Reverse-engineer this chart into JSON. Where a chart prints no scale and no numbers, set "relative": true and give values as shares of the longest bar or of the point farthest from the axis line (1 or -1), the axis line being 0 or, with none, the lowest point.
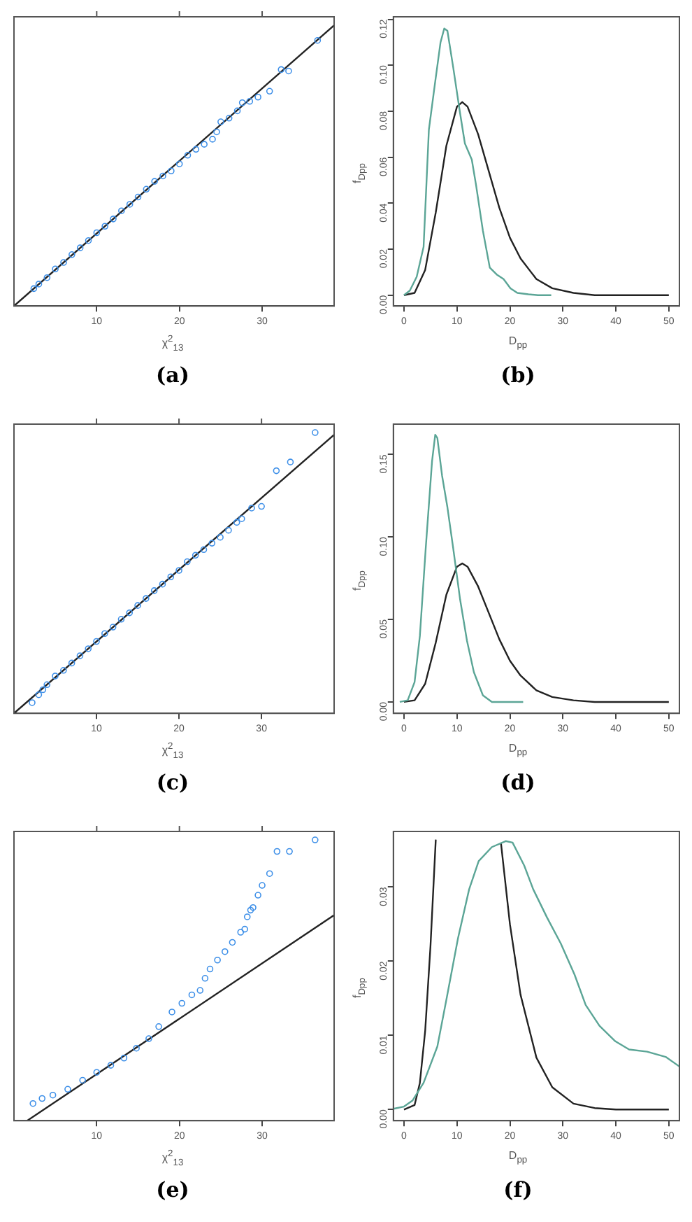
{
  "chart_data": [
    {
      "type": "scatter",
      "title": "(a)",
      "xlabel": "χ$^{2}$$_{13}$",
      "xlim": [
        0,
        38.7
      ],
      "xticks": [
        10,
        20,
        30
      ],
      "relative": true,
      "series": [
        {
          "type": "scatter",
          "marker": "circle",
          "color": "#3d8fe8",
          "x": [
            2.4,
            3,
            4,
            5,
            6,
            7,
            8,
            9,
            10,
            11,
            12,
            13,
            14,
            15,
            16,
            17,
            18,
            19,
            20,
            21,
            22,
            23,
            24,
            24.5,
            25,
            26,
            27,
            27.6,
            28.5,
            29.5,
            30.9,
            32.3,
            33.2,
            36.7
          ],
          "values": [
            0.062,
            0.078,
            0.101,
            0.132,
            0.155,
            0.183,
            0.207,
            0.233,
            0.261,
            0.284,
            0.31,
            0.339,
            0.362,
            0.388,
            0.416,
            0.444,
            0.463,
            0.481,
            0.506,
            0.537,
            0.558,
            0.576,
            0.594,
            0.62,
            0.656,
            0.669,
            0.695,
            0.724,
            0.729,
            0.744,
            0.765,
            0.842,
            0.837,
            0.946
          ]
        },
        {
          "type": "line",
          "marker": "none",
          "color": "#222222",
          "x": [
            0,
            38.7
          ],
          "values": [
            0,
            1
          ]
        }
      ]
    },
    {
      "type": "line",
      "title": "(b)",
      "xlabel": "D$_{pp}$",
      "ylabel": "f$_{Dpp}$",
      "xlim": [
        -2,
        52
      ],
      "ylim": [
        -0.0047,
        0.1211
      ],
      "xticks": [
        0,
        10,
        20,
        30,
        40,
        50
      ],
      "yticks": [
        {
          "value": 0,
          "label": "0.00"
        },
        {
          "value": 0.02,
          "label": "0.02"
        },
        {
          "value": 0.04,
          "label": "0.04"
        },
        {
          "value": 0.06,
          "label": "0.06"
        },
        {
          "value": 0.08,
          "label": "0.08"
        },
        {
          "value": 0.1,
          "label": "0.10"
        },
        {
          "value": 0.12,
          "label": "0.12"
        }
      ],
      "series": [
        {
          "color": "#5ba596",
          "x": [
            0,
            1.1,
            2.4,
            3.7,
            4.7,
            5.9,
            6.9,
            7.6,
            8.2,
            9.3,
            10.6,
            11.5,
            12.8,
            13.6,
            14.9,
            16.2,
            17.5,
            18.8,
            20.1,
            21.4,
            23.5,
            25.3,
            27.8
          ],
          "values": [
            0,
            0.002,
            0.008,
            0.021,
            0.072,
            0.093,
            0.11,
            0.116,
            0.115,
            0.099,
            0.079,
            0.066,
            0.059,
            0.048,
            0.028,
            0.012,
            0.009,
            0.007,
            0.003,
            0.001,
            0.0004,
            0,
            0
          ]
        },
        {
          "color": "#222222",
          "x": [
            0,
            2,
            4,
            6,
            8,
            10,
            11,
            12,
            14,
            16,
            18,
            20,
            22,
            25,
            28,
            32,
            36,
            40,
            50
          ],
          "values": [
            0,
            0.001,
            0.011,
            0.036,
            0.065,
            0.082,
            0.084,
            0.082,
            0.07,
            0.054,
            0.038,
            0.025,
            0.016,
            0.007,
            0.003,
            0.001,
            0,
            0,
            0
          ]
        }
      ]
    },
    {
      "type": "scatter",
      "title": "(c)",
      "xlabel": "χ$^{2}$$_{13}$",
      "xlim": [
        0,
        38.8
      ],
      "xticks": [
        10,
        20,
        30
      ],
      "relative": true,
      "series": [
        {
          "type": "scatter",
          "marker": "circle",
          "color": "#3d8fe8",
          "x": [
            2.2,
            3,
            3.5,
            4,
            5,
            6,
            7,
            8,
            9,
            10,
            11,
            12,
            13,
            14,
            15,
            16,
            17,
            18,
            19,
            20,
            21,
            22,
            23,
            24,
            25,
            26,
            27,
            27.6,
            28.8,
            30,
            31.8,
            33.5,
            36.5
          ],
          "values": [
            0.038,
            0.066,
            0.084,
            0.102,
            0.133,
            0.153,
            0.179,
            0.205,
            0.23,
            0.256,
            0.284,
            0.307,
            0.335,
            0.358,
            0.384,
            0.409,
            0.437,
            0.46,
            0.486,
            0.509,
            0.54,
            0.563,
            0.583,
            0.606,
            0.627,
            0.652,
            0.68,
            0.693,
            0.731,
            0.737,
            0.864,
            0.895,
            1
          ]
        },
        {
          "type": "line",
          "marker": "none",
          "color": "#222222",
          "x": [
            0,
            38.8
          ],
          "values": [
            0,
            0.992
          ]
        }
      ]
    },
    {
      "type": "line",
      "title": "(d)",
      "xlabel": "D$_{pp}$",
      "ylabel": "f$_{Dpp}$",
      "xlim": [
        -2,
        52
      ],
      "ylim": [
        -0.0069,
        0.1684
      ],
      "xticks": [
        0,
        10,
        20,
        30,
        40,
        50
      ],
      "yticks": [
        {
          "value": 0,
          "label": "0.00"
        },
        {
          "value": 0.05,
          "label": "0.05"
        },
        {
          "value": 0.1,
          "label": "0.10"
        },
        {
          "value": 0.15,
          "label": "0.15"
        }
      ],
      "series": [
        {
          "color": "#5ba596",
          "x": [
            -0.8,
            0.7,
            2,
            3,
            4.1,
            5.3,
            5.9,
            6.3,
            7.2,
            8.2,
            9.3,
            10.6,
            11.9,
            13.2,
            14.9,
            16.6,
            19.2,
            22.5
          ],
          "values": [
            0,
            0.001,
            0.012,
            0.04,
            0.093,
            0.146,
            0.162,
            0.16,
            0.137,
            0.118,
            0.093,
            0.062,
            0.037,
            0.018,
            0.004,
            0,
            0,
            0
          ]
        },
        {
          "color": "#222222",
          "x": [
            0,
            2,
            4,
            6,
            8,
            10,
            11,
            12,
            14,
            16,
            18,
            20,
            22,
            25,
            28,
            32,
            36,
            40,
            50
          ],
          "values": [
            0,
            0.001,
            0.011,
            0.036,
            0.065,
            0.082,
            0.084,
            0.082,
            0.07,
            0.054,
            0.038,
            0.025,
            0.016,
            0.007,
            0.003,
            0.001,
            0,
            0,
            0
          ]
        }
      ]
    },
    {
      "type": "scatter",
      "title": "(e)",
      "xlabel": "χ$^{2}$$_{13}$",
      "xlim": [
        0,
        38.7
      ],
      "xticks": [
        10,
        20,
        30
      ],
      "relative": true,
      "series": [
        {
          "type": "scatter",
          "marker": "circle",
          "color": "#3d8fe8",
          "x": [
            2.3,
            3.4,
            4.7,
            6.5,
            8.3,
            10,
            11.7,
            13.3,
            14.8,
            16.3,
            17.5,
            19.1,
            20.3,
            21.5,
            22.5,
            23.1,
            23.7,
            24.6,
            25.5,
            26.4,
            27.4,
            27.9,
            28.2,
            28.6,
            28.9,
            29.5,
            30,
            30.9,
            31.8,
            33.3,
            36.4
          ],
          "values": [
            0.061,
            0.079,
            0.091,
            0.112,
            0.144,
            0.172,
            0.197,
            0.223,
            0.258,
            0.292,
            0.335,
            0.387,
            0.418,
            0.448,
            0.464,
            0.507,
            0.54,
            0.572,
            0.602,
            0.635,
            0.671,
            0.682,
            0.726,
            0.75,
            0.759,
            0.803,
            0.838,
            0.88,
            0.959,
            0.959,
            1
          ]
        },
        {
          "type": "line",
          "marker": "none",
          "color": "#222222",
          "x": [
            1.6,
            38.7
          ],
          "values": [
            0,
            0.732
          ]
        }
      ]
    },
    {
      "type": "line",
      "title": "(f)",
      "xlabel": "D$_{pp}$",
      "ylabel": "f$_{Dpp}$",
      "xlim": [
        -2,
        52
      ],
      "ylim": [
        -0.0015,
        0.0375
      ],
      "xticks": [
        0,
        10,
        20,
        30,
        40,
        50
      ],
      "yticks": [
        {
          "value": 0,
          "label": "0.00"
        },
        {
          "value": 0.01,
          "label": "0.01"
        },
        {
          "value": 0.02,
          "label": "0.02"
        },
        {
          "value": 0.03,
          "label": "0.03"
        }
      ],
      "series": [
        {
          "color": "#5ba596",
          "x": [
            -2,
            0,
            1.6,
            3.7,
            6.3,
            8,
            10.2,
            12.3,
            14.1,
            16.6,
            19.2,
            20.5,
            22.7,
            24.4,
            27,
            29.6,
            32.2,
            34.3,
            36.9,
            39.9,
            42.5,
            45.9,
            49.4,
            52
          ],
          "values": [
            0.0001,
            0.0004,
            0.0012,
            0.0036,
            0.0085,
            0.0148,
            0.0231,
            0.0297,
            0.0335,
            0.0354,
            0.0362,
            0.036,
            0.0329,
            0.0297,
            0.0259,
            0.0224,
            0.0182,
            0.0141,
            0.0113,
            0.0092,
            0.0081,
            0.0078,
            0.0071,
            0.0058
          ]
        },
        {
          "color": "#222222",
          "x": [
            0,
            2,
            3,
            4,
            5,
            6,
            12,
            18.3,
            20,
            22,
            25,
            28,
            32,
            36,
            40,
            50
          ],
          "values": [
            0,
            0.0006,
            0.0036,
            0.0106,
            0.022,
            0.0364,
            null,
            0.036,
            0.025,
            0.0155,
            0.007,
            0.003,
            0.0008,
            0.0002,
            0,
            0
          ]
        }
      ]
    }
  ]
}
